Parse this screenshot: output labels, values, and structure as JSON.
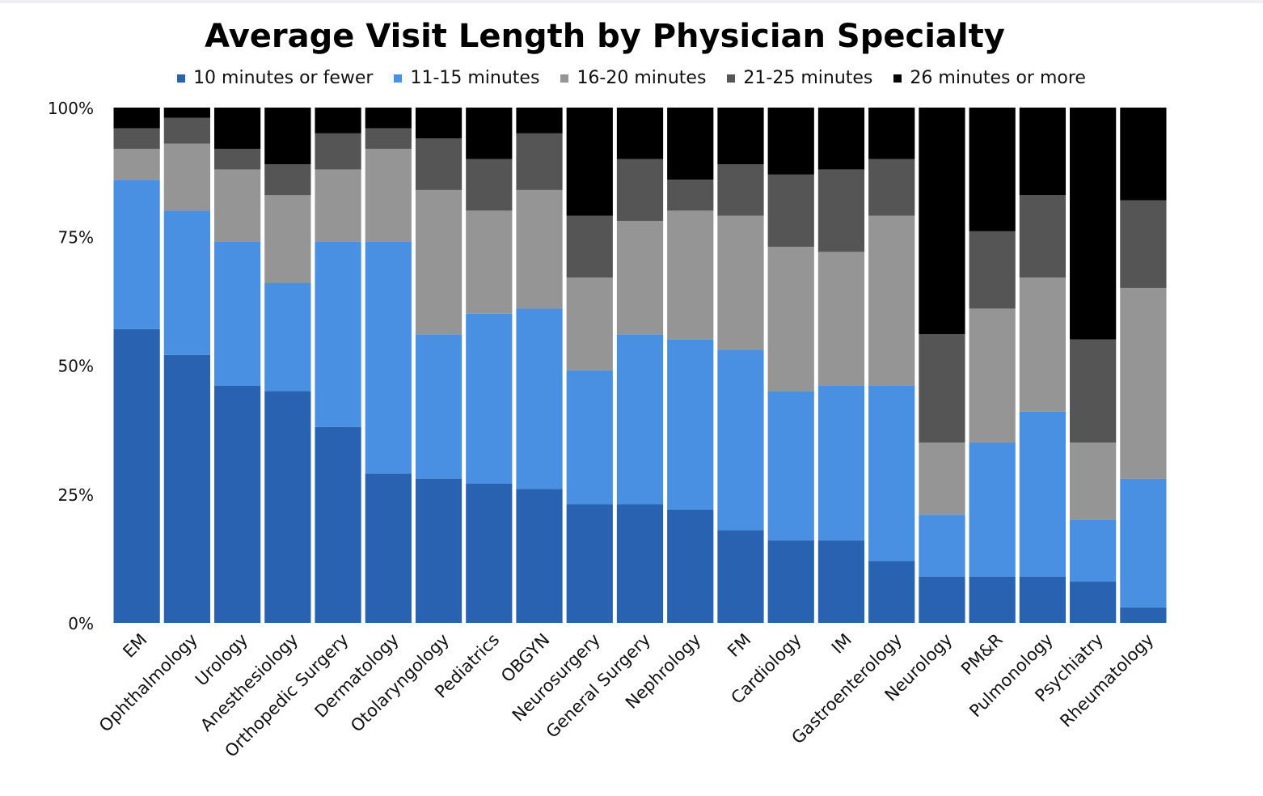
{
  "chart_data": {
    "type": "bar",
    "stacked": true,
    "title": "Average Visit Length by Physician Specialty",
    "xlabel": "",
    "ylabel": "",
    "ylim": [
      0,
      100
    ],
    "y_ticks": [
      "0%",
      "25%",
      "50%",
      "75%",
      "100%"
    ],
    "y_tick_values": [
      0,
      25,
      50,
      75,
      100
    ],
    "legend_position": "top",
    "grid": false,
    "categories": [
      "EM",
      "Ophthalmology",
      "Urology",
      "Anesthesiology",
      "Orthopedic Surgery",
      "Dermatology",
      "Otolaryngology",
      "Pediatrics",
      "OBGYN",
      "Neurosurgery",
      "General Surgery",
      "Nephrology",
      "FM",
      "Cardiology",
      "IM",
      "Gastroenterology",
      "Neurology",
      "PM&R",
      "Pulmonology",
      "Psychiatry",
      "Rheumatology"
    ],
    "series": [
      {
        "name": "10 minutes or fewer",
        "color": "#2862b0",
        "values": [
          57,
          52,
          46,
          45,
          38,
          29,
          28,
          27,
          26,
          23,
          23,
          22,
          18,
          16,
          16,
          12,
          9,
          9,
          9,
          8,
          3
        ]
      },
      {
        "name": "11-15 minutes",
        "color": "#4a90e2",
        "values": [
          29,
          28,
          28,
          21,
          36,
          45,
          28,
          33,
          35,
          26,
          33,
          33,
          35,
          29,
          30,
          34,
          12,
          26,
          32,
          12,
          25
        ]
      },
      {
        "name": "16-20 minutes",
        "color": "#959595",
        "values": [
          6,
          13,
          14,
          17,
          14,
          18,
          28,
          20,
          23,
          18,
          22,
          25,
          26,
          28,
          26,
          33,
          14,
          26,
          26,
          15,
          37
        ]
      },
      {
        "name": "21-25 minutes",
        "color": "#555555",
        "values": [
          4,
          5,
          4,
          6,
          7,
          4,
          10,
          10,
          11,
          12,
          12,
          6,
          10,
          14,
          16,
          11,
          21,
          15,
          16,
          20,
          17
        ]
      },
      {
        "name": "26 minutes or more",
        "color": "#000000",
        "values": [
          4,
          2,
          8,
          11,
          5,
          4,
          6,
          10,
          5,
          21,
          10,
          14,
          11,
          13,
          12,
          10,
          44,
          24,
          17,
          45,
          18
        ]
      }
    ]
  }
}
